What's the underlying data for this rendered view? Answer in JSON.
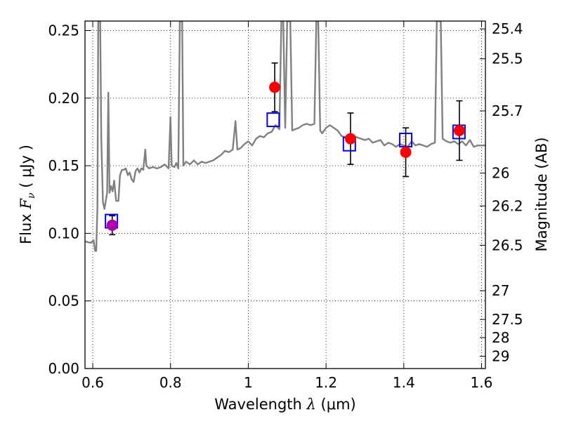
{
  "chart_data": {
    "type": "line",
    "xlabel": {
      "prefix": "Wavelength",
      "symbol": "λ",
      "unit": "(μm)"
    },
    "ylabel": {
      "prefix": "Flux",
      "symbol": "F",
      "sub": "ν",
      "unit": "( μJy )"
    },
    "y2label": "Magnitude (AB)",
    "xlim": [
      0.58,
      1.61
    ],
    "ylim": [
      0.0,
      0.257
    ],
    "grid": true,
    "x_ticks": [
      {
        "value": 0.6,
        "label": "0.6"
      },
      {
        "value": 0.8,
        "label": "0.8"
      },
      {
        "value": 1.0,
        "label": "1"
      },
      {
        "value": 1.2,
        "label": "1.2"
      },
      {
        "value": 1.4,
        "label": "1.4"
      },
      {
        "value": 1.6,
        "label": "1.6"
      }
    ],
    "y_ticks": [
      {
        "value": 0.0,
        "label": "0.00"
      },
      {
        "value": 0.05,
        "label": "0.05"
      },
      {
        "value": 0.1,
        "label": "0.10"
      },
      {
        "value": 0.15,
        "label": "0.15"
      },
      {
        "value": 0.2,
        "label": "0.20"
      },
      {
        "value": 0.25,
        "label": "0.25"
      }
    ],
    "y2_ticks": [
      {
        "value": 25.4,
        "label": "25.4"
      },
      {
        "value": 25.5,
        "label": "25.5"
      },
      {
        "value": 25.7,
        "label": "25.7"
      },
      {
        "value": 26.0,
        "label": "26"
      },
      {
        "value": 26.2,
        "label": "26.2"
      },
      {
        "value": 26.5,
        "label": "26.5"
      },
      {
        "value": 27.0,
        "label": "27"
      },
      {
        "value": 27.5,
        "label": "27.5"
      },
      {
        "value": 28.0,
        "label": "28"
      },
      {
        "value": 29.0,
        "label": "29"
      }
    ],
    "colors": {
      "model": "#808080",
      "observed": "#ff0000",
      "observed_limit": "#b000b0",
      "model_box": "#0000ff",
      "errorbar": "#000000"
    },
    "model_spectrum": [
      [
        0.58,
        0.094
      ],
      [
        0.595,
        0.093
      ],
      [
        0.602,
        0.095
      ],
      [
        0.606,
        0.087
      ],
      [
        0.609,
        0.087
      ],
      [
        0.612,
        0.12
      ],
      [
        0.614,
        0.257
      ],
      [
        0.619,
        0.257
      ],
      [
        0.622,
        0.17
      ],
      [
        0.626,
        0.123
      ],
      [
        0.63,
        0.118
      ],
      [
        0.634,
        0.125
      ],
      [
        0.637,
        0.13
      ],
      [
        0.64,
        0.204
      ],
      [
        0.643,
        0.13
      ],
      [
        0.647,
        0.135
      ],
      [
        0.651,
        0.131
      ],
      [
        0.655,
        0.139
      ],
      [
        0.66,
        0.124
      ],
      [
        0.666,
        0.124
      ],
      [
        0.67,
        0.143
      ],
      [
        0.675,
        0.147
      ],
      [
        0.68,
        0.147
      ],
      [
        0.685,
        0.148
      ],
      [
        0.69,
        0.143
      ],
      [
        0.695,
        0.145
      ],
      [
        0.7,
        0.14
      ],
      [
        0.705,
        0.138
      ],
      [
        0.71,
        0.146
      ],
      [
        0.715,
        0.148
      ],
      [
        0.72,
        0.145
      ],
      [
        0.725,
        0.148
      ],
      [
        0.73,
        0.147
      ],
      [
        0.735,
        0.162
      ],
      [
        0.738,
        0.15
      ],
      [
        0.745,
        0.148
      ],
      [
        0.755,
        0.149
      ],
      [
        0.765,
        0.148
      ],
      [
        0.775,
        0.149
      ],
      [
        0.785,
        0.151
      ],
      [
        0.795,
        0.148
      ],
      [
        0.8,
        0.186
      ],
      [
        0.803,
        0.15
      ],
      [
        0.81,
        0.149
      ],
      [
        0.815,
        0.152
      ],
      [
        0.82,
        0.148
      ],
      [
        0.824,
        0.257
      ],
      [
        0.83,
        0.257
      ],
      [
        0.833,
        0.15
      ],
      [
        0.84,
        0.153
      ],
      [
        0.85,
        0.151
      ],
      [
        0.86,
        0.154
      ],
      [
        0.87,
        0.151
      ],
      [
        0.88,
        0.153
      ],
      [
        0.89,
        0.152
      ],
      [
        0.9,
        0.153
      ],
      [
        0.91,
        0.154
      ],
      [
        0.92,
        0.156
      ],
      [
        0.93,
        0.158
      ],
      [
        0.94,
        0.161
      ],
      [
        0.95,
        0.16
      ],
      [
        0.96,
        0.162
      ],
      [
        0.967,
        0.183
      ],
      [
        0.972,
        0.162
      ],
      [
        0.98,
        0.163
      ],
      [
        0.99,
        0.166
      ],
      [
        1.0,
        0.168
      ],
      [
        1.01,
        0.165
      ],
      [
        1.02,
        0.17
      ],
      [
        1.03,
        0.172
      ],
      [
        1.04,
        0.171
      ],
      [
        1.05,
        0.174
      ],
      [
        1.06,
        0.175
      ],
      [
        1.07,
        0.18
      ],
      [
        1.08,
        0.177
      ],
      [
        1.085,
        0.257
      ],
      [
        1.09,
        0.257
      ],
      [
        1.095,
        0.178
      ],
      [
        1.1,
        0.257
      ],
      [
        1.108,
        0.257
      ],
      [
        1.113,
        0.176
      ],
      [
        1.12,
        0.177
      ],
      [
        1.13,
        0.178
      ],
      [
        1.14,
        0.18
      ],
      [
        1.15,
        0.181
      ],
      [
        1.16,
        0.18
      ],
      [
        1.17,
        0.181
      ],
      [
        1.175,
        0.257
      ],
      [
        1.18,
        0.257
      ],
      [
        1.185,
        0.176
      ],
      [
        1.19,
        0.174
      ],
      [
        1.2,
        0.178
      ],
      [
        1.21,
        0.18
      ],
      [
        1.22,
        0.178
      ],
      [
        1.23,
        0.176
      ],
      [
        1.24,
        0.172
      ],
      [
        1.25,
        0.171
      ],
      [
        1.26,
        0.17
      ],
      [
        1.27,
        0.172
      ],
      [
        1.28,
        0.171
      ],
      [
        1.29,
        0.17
      ],
      [
        1.3,
        0.169
      ],
      [
        1.31,
        0.17
      ],
      [
        1.32,
        0.167
      ],
      [
        1.33,
        0.168
      ],
      [
        1.34,
        0.169
      ],
      [
        1.35,
        0.165
      ],
      [
        1.36,
        0.167
      ],
      [
        1.37,
        0.166
      ],
      [
        1.38,
        0.164
      ],
      [
        1.39,
        0.166
      ],
      [
        1.4,
        0.165
      ],
      [
        1.41,
        0.164
      ],
      [
        1.42,
        0.168
      ],
      [
        1.43,
        0.165
      ],
      [
        1.44,
        0.166
      ],
      [
        1.45,
        0.165
      ],
      [
        1.46,
        0.164
      ],
      [
        1.47,
        0.166
      ],
      [
        1.48,
        0.167
      ],
      [
        1.485,
        0.257
      ],
      [
        1.495,
        0.257
      ],
      [
        1.5,
        0.17
      ],
      [
        1.51,
        0.168
      ],
      [
        1.52,
        0.167
      ],
      [
        1.53,
        0.168
      ],
      [
        1.54,
        0.166
      ],
      [
        1.55,
        0.168
      ],
      [
        1.56,
        0.165
      ],
      [
        1.57,
        0.169
      ],
      [
        1.58,
        0.164
      ],
      [
        1.59,
        0.165
      ],
      [
        1.6,
        0.165
      ],
      [
        1.61,
        0.165
      ]
    ],
    "model_boxes": [
      {
        "x": 0.648,
        "y": 0.109
      },
      {
        "x": 1.064,
        "y": 0.184
      },
      {
        "x": 1.26,
        "y": 0.166
      },
      {
        "x": 1.405,
        "y": 0.169
      },
      {
        "x": 1.542,
        "y": 0.175
      }
    ],
    "observed_points": [
      {
        "x": 0.65,
        "y": 0.106,
        "err": 0.007,
        "style": "observed_limit"
      },
      {
        "x": 1.068,
        "y": 0.208,
        "err": 0.018,
        "style": "observed"
      },
      {
        "x": 1.263,
        "y": 0.17,
        "err": 0.019,
        "style": "observed"
      },
      {
        "x": 1.405,
        "y": 0.16,
        "err": 0.018,
        "style": "observed"
      },
      {
        "x": 1.543,
        "y": 0.176,
        "err": 0.022,
        "style": "observed"
      }
    ]
  }
}
